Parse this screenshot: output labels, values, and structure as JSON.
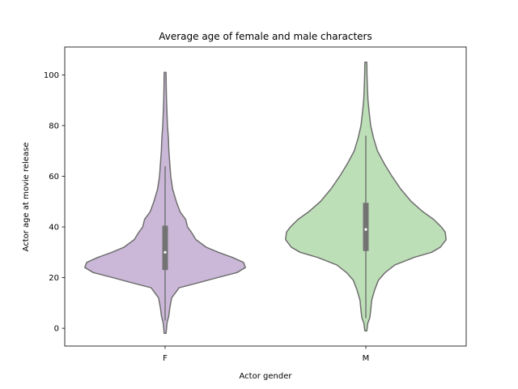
{
  "chart_data": {
    "type": "violin",
    "title": "Average age of female and male characters",
    "xlabel": "Actor gender",
    "ylabel": "Actor age at movie release",
    "categories": [
      "F",
      "M"
    ],
    "colors": [
      "#cbb8d8",
      "#bddfb7"
    ],
    "edge_color": "#6e6e6e",
    "box_color": "#737373",
    "ylim": [
      -7,
      111
    ],
    "yticks": [
      0,
      20,
      40,
      60,
      80,
      100
    ],
    "grid": false,
    "legend": "none",
    "series": [
      {
        "category": "F",
        "min": -2,
        "max": 101,
        "q1": 23,
        "median": 30,
        "q3": 40.5,
        "whisker_low": 3,
        "whisker_high": 64,
        "density": [
          [
            -2,
            0.01
          ],
          [
            2,
            0.02
          ],
          [
            5,
            0.04
          ],
          [
            8,
            0.05
          ],
          [
            12,
            0.07
          ],
          [
            16,
            0.15
          ],
          [
            18,
            0.36
          ],
          [
            20,
            0.56
          ],
          [
            22,
            0.77
          ],
          [
            24,
            0.86
          ],
          [
            26,
            0.84
          ],
          [
            28,
            0.72
          ],
          [
            30,
            0.57
          ],
          [
            32,
            0.44
          ],
          [
            35,
            0.33
          ],
          [
            38,
            0.28
          ],
          [
            40,
            0.24
          ],
          [
            43,
            0.22
          ],
          [
            46,
            0.16
          ],
          [
            50,
            0.12
          ],
          [
            55,
            0.08
          ],
          [
            60,
            0.06
          ],
          [
            65,
            0.05
          ],
          [
            70,
            0.04
          ],
          [
            75,
            0.035
          ],
          [
            80,
            0.025
          ],
          [
            85,
            0.02
          ],
          [
            90,
            0.015
          ],
          [
            95,
            0.012
          ],
          [
            101,
            0.01
          ]
        ]
      },
      {
        "category": "M",
        "min": -1,
        "max": 105,
        "q1": 30.5,
        "median": 39,
        "q3": 49.5,
        "whisker_low": 4,
        "whisker_high": 76,
        "density": [
          [
            -1,
            0.01
          ],
          [
            2,
            0.02
          ],
          [
            4,
            0.04
          ],
          [
            7,
            0.05
          ],
          [
            11,
            0.06
          ],
          [
            15,
            0.09
          ],
          [
            19,
            0.13
          ],
          [
            22,
            0.2
          ],
          [
            25,
            0.3
          ],
          [
            28,
            0.5
          ],
          [
            30,
            0.68
          ],
          [
            32,
            0.77
          ],
          [
            35,
            0.83
          ],
          [
            38,
            0.82
          ],
          [
            40,
            0.78
          ],
          [
            43,
            0.7
          ],
          [
            46,
            0.59
          ],
          [
            50,
            0.47
          ],
          [
            55,
            0.36
          ],
          [
            60,
            0.27
          ],
          [
            65,
            0.19
          ],
          [
            70,
            0.12
          ],
          [
            75,
            0.08
          ],
          [
            80,
            0.05
          ],
          [
            85,
            0.035
          ],
          [
            90,
            0.022
          ],
          [
            95,
            0.016
          ],
          [
            100,
            0.012
          ],
          [
            105,
            0.01
          ]
        ]
      }
    ]
  }
}
